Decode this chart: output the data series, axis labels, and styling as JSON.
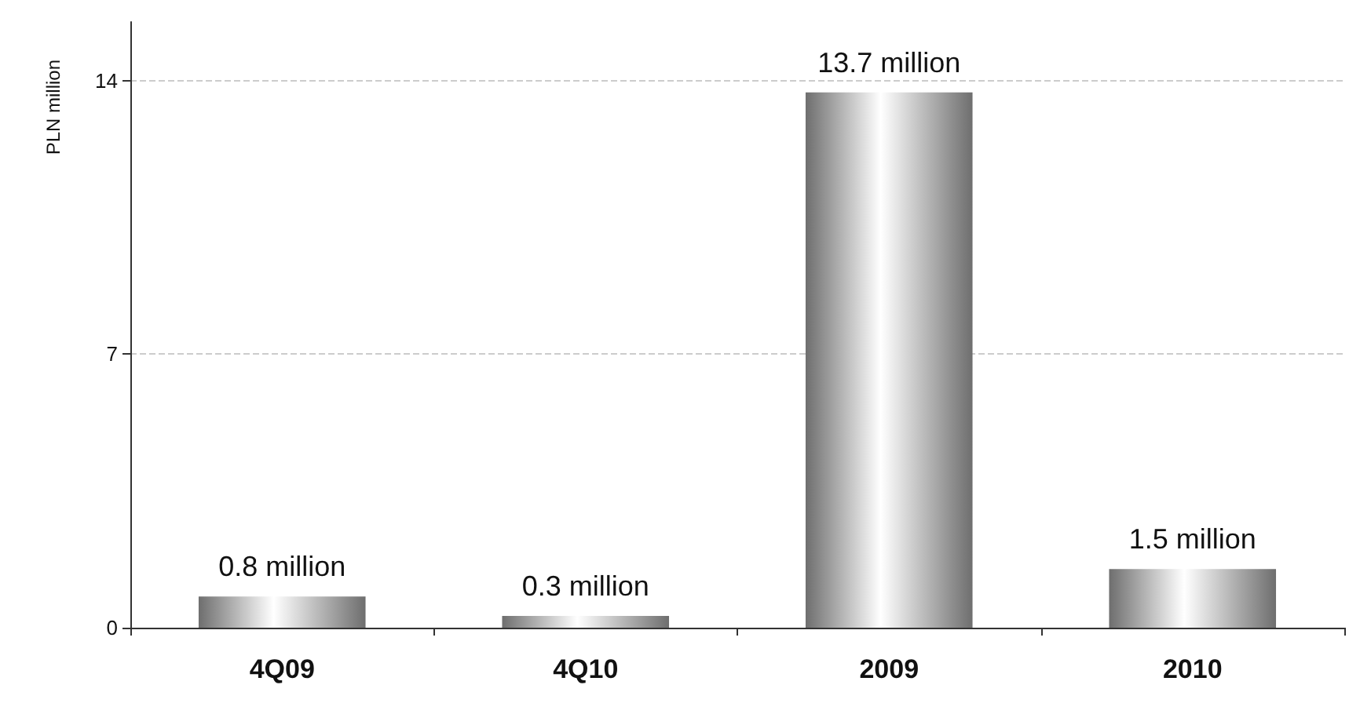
{
  "chart_data": {
    "type": "bar",
    "ylabel": "PLN million",
    "categories": [
      "4Q09",
      "4Q10",
      "2009",
      "2010"
    ],
    "values": [
      0.8,
      0.3,
      13.7,
      1.5
    ],
    "value_labels": [
      "0.8 million",
      "0.3 million",
      "13.7 million",
      "1.5 million"
    ],
    "color": "#6e6e6e",
    "ylim": [
      0,
      15.5
    ],
    "yticks": [
      0,
      7,
      14
    ],
    "grid": "y"
  }
}
